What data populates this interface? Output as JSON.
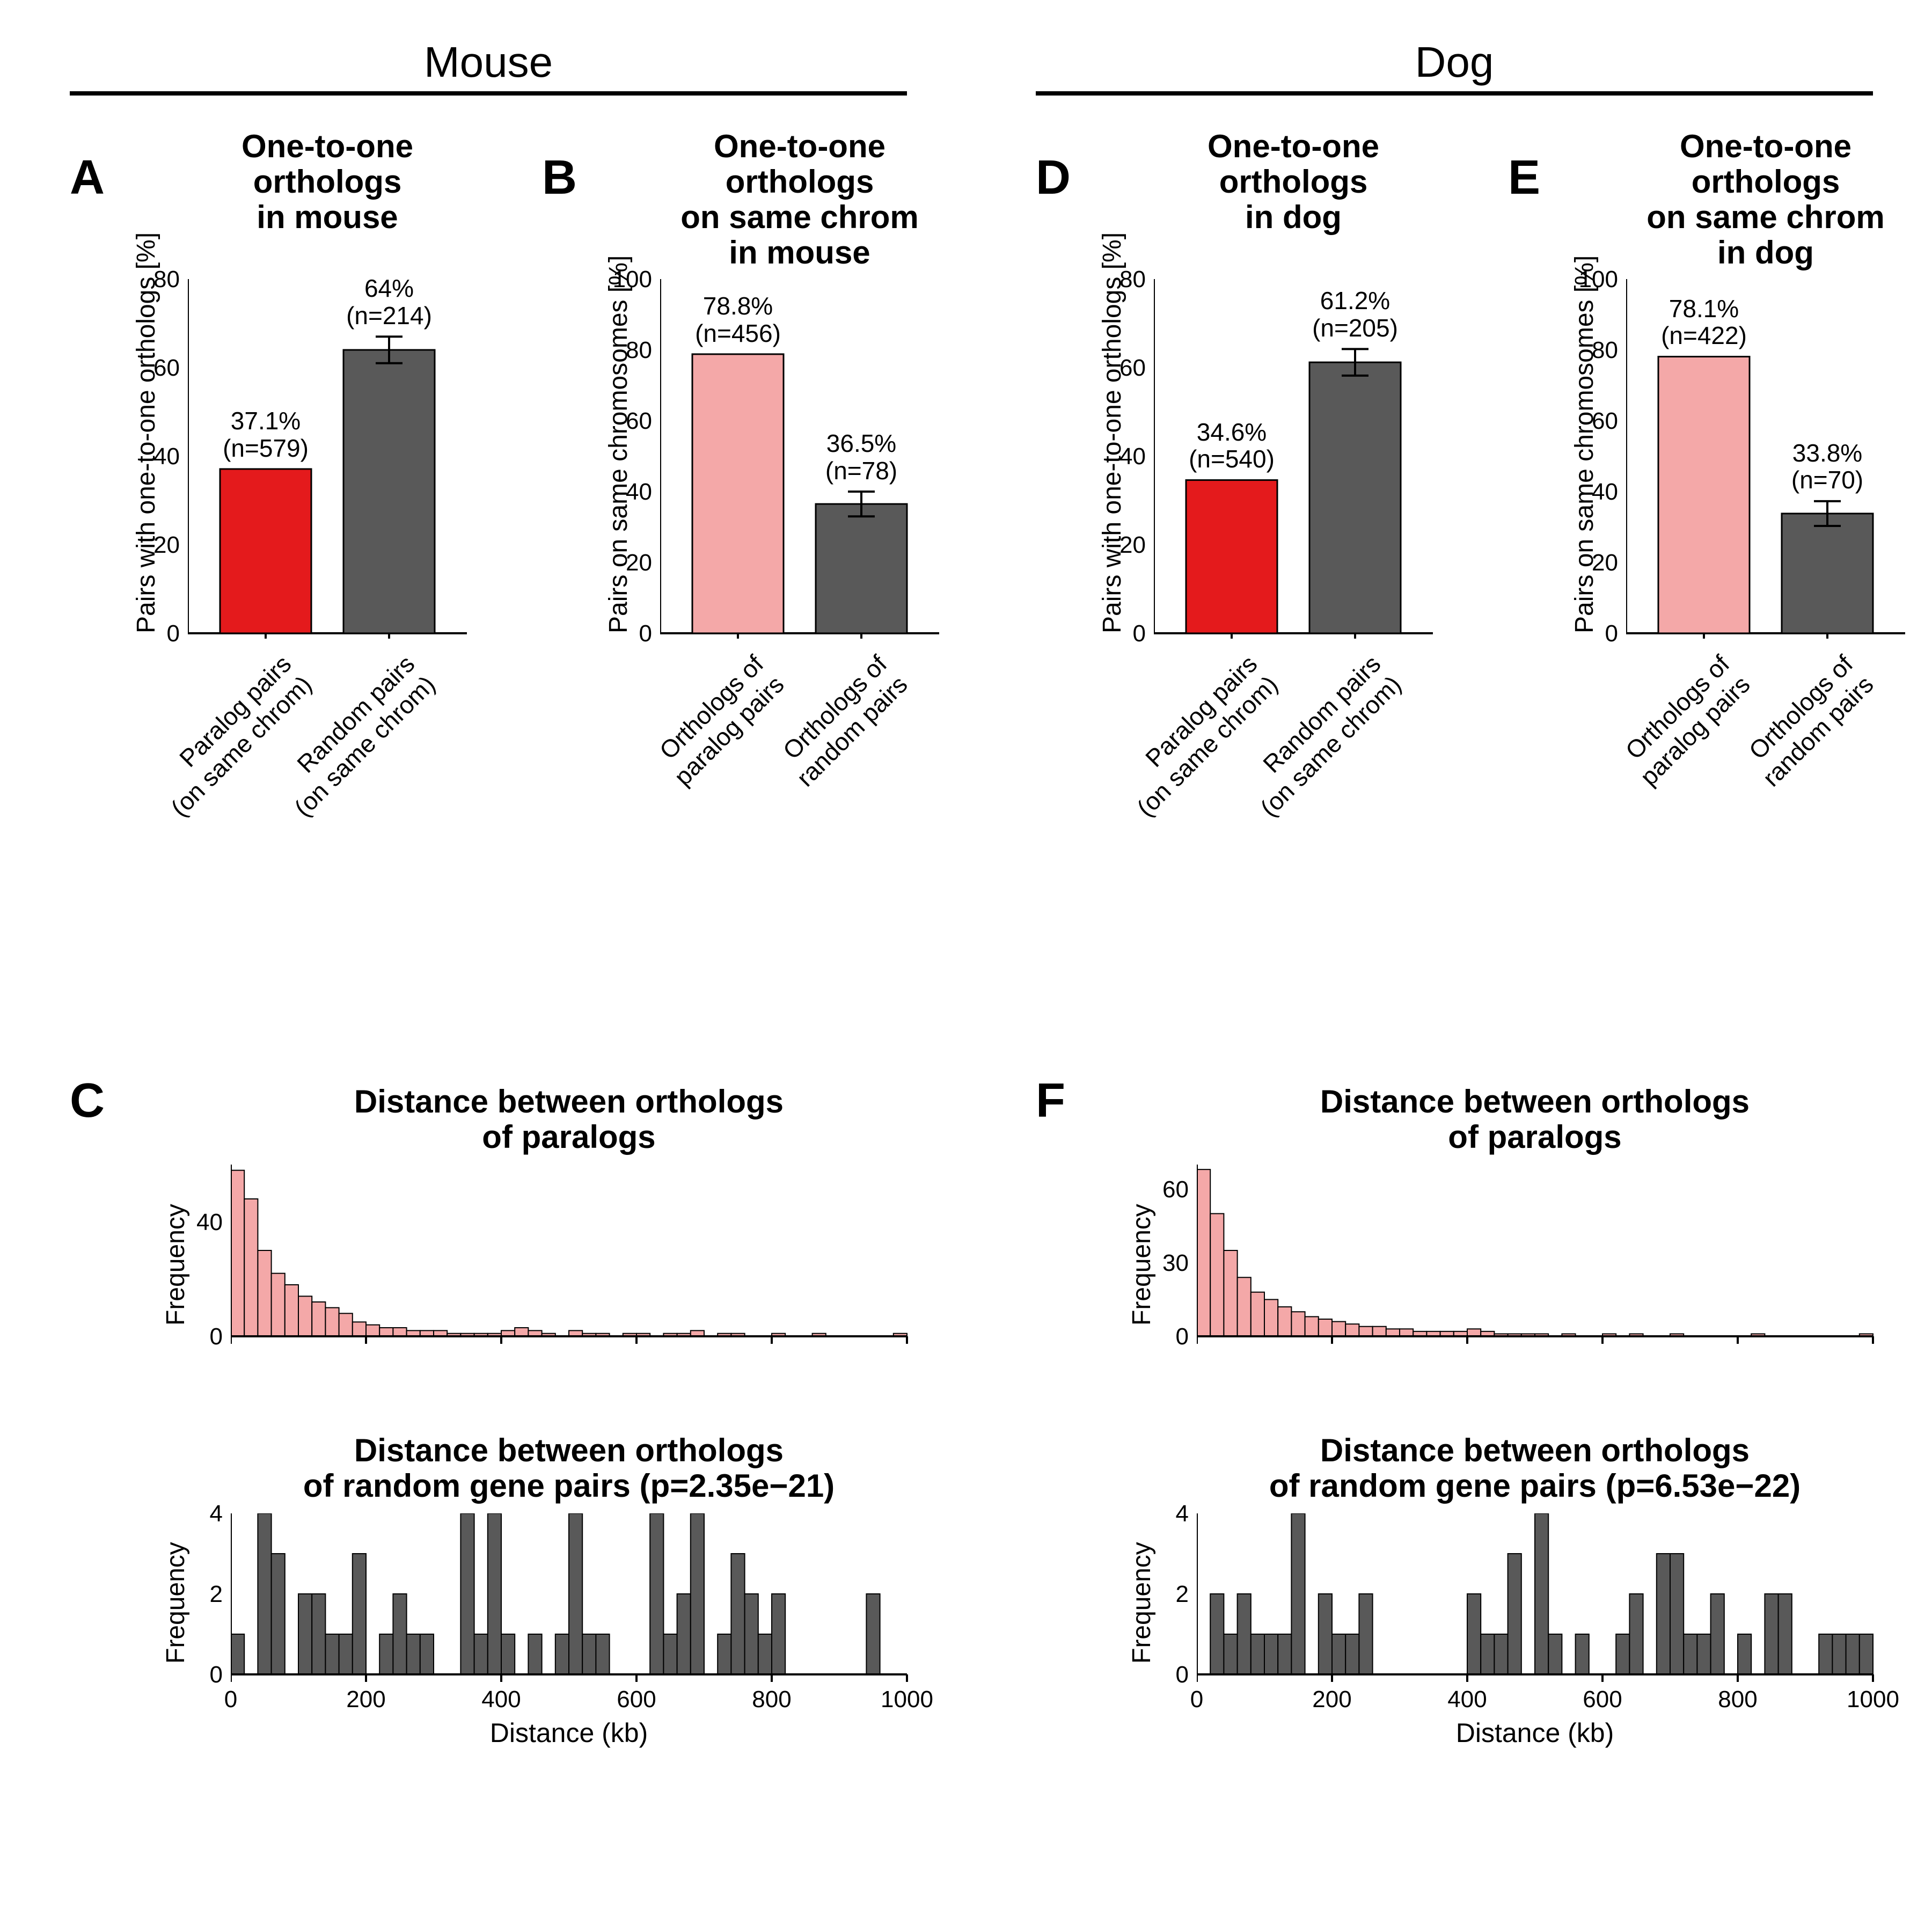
{
  "colors": {
    "red": "#e41a1c",
    "pink": "#f4a8a8",
    "grey": "#595959",
    "axis": "#000000",
    "bg": "#ffffff"
  },
  "headers": {
    "mouse": "Mouse",
    "dog": "Dog"
  },
  "panels": {
    "A": {
      "letter": "A",
      "title": "One-to-one\northologs\nin  mouse",
      "ylab": "Pairs with one-to-one orthologs [%]",
      "ylim": [
        0,
        80
      ],
      "ytick_step": 20,
      "bars": [
        {
          "label": "Paralog pairs\n(on same chrom)",
          "value": 37.1,
          "annot": "37.1%\n(n=579)",
          "color": "#e41a1c",
          "err": 0
        },
        {
          "label": "Random pairs\n(on same chrom)",
          "value": 64,
          "annot": "64%\n(n=214)",
          "color": "#595959",
          "err": 3.0
        }
      ]
    },
    "B": {
      "letter": "B",
      "title": "One-to-one\northologs\non same chrom\nin mouse",
      "ylab": "Pairs on same chromosomes [%]",
      "ylim": [
        0,
        100
      ],
      "ytick_step": 20,
      "bars": [
        {
          "label": "Orthologs of\nparalog pairs",
          "value": 78.8,
          "annot": "78.8%\n(n=456)",
          "color": "#f4a8a8",
          "err": 0
        },
        {
          "label": "Orthologs of\nrandom pairs",
          "value": 36.5,
          "annot": "36.5%\n(n=78)",
          "color": "#595959",
          "err": 3.5
        }
      ]
    },
    "D": {
      "letter": "D",
      "title": "One-to-one\northologs\nin  dog",
      "ylab": "Pairs with one-to-one orthologs [%]",
      "ylim": [
        0,
        80
      ],
      "ytick_step": 20,
      "bars": [
        {
          "label": "Paralog pairs\n(on same chrom)",
          "value": 34.6,
          "annot": "34.6%\n(n=540)",
          "color": "#e41a1c",
          "err": 0
        },
        {
          "label": "Random pairs\n(on same chrom)",
          "value": 61.2,
          "annot": "61.2%\n(n=205)",
          "color": "#595959",
          "err": 3.0
        }
      ]
    },
    "E": {
      "letter": "E",
      "title": "One-to-one\northologs\non same chrom\nin dog",
      "ylab": "Pairs on same chromosomes [%]",
      "ylim": [
        0,
        100
      ],
      "ytick_step": 20,
      "bars": [
        {
          "label": "Orthologs of\nparalog pairs",
          "value": 78.1,
          "annot": "78.1%\n(n=422)",
          "color": "#f4a8a8",
          "err": 0
        },
        {
          "label": "Orthologs of\nrandom pairs",
          "value": 33.8,
          "annot": "33.8%\n(n=70)",
          "color": "#595959",
          "err": 3.5
        }
      ]
    },
    "C": {
      "letter": "C",
      "top_title": "Distance between orthologs\nof paralogs",
      "bot_title": "Distance between orthologs\nof random gene pairs (p=2.35e−21)",
      "xlab": "Distance (kb)",
      "xlim": [
        0,
        1000
      ],
      "xtick_step": 200,
      "top": {
        "color": "#f4a8a8",
        "ylim": [
          0,
          60
        ],
        "yticks": [
          0,
          40
        ],
        "bins": [
          58,
          48,
          30,
          22,
          18,
          14,
          12,
          10,
          8,
          5,
          4,
          3,
          3,
          2,
          2,
          2,
          1,
          1,
          1,
          1,
          2,
          3,
          2,
          1,
          0,
          2,
          1,
          1,
          0,
          1,
          1,
          0,
          1,
          1,
          2,
          0,
          1,
          1,
          0,
          0,
          1,
          0,
          0,
          1,
          0,
          0,
          0,
          0,
          0,
          1
        ]
      },
      "bot": {
        "color": "#595959",
        "ylim": [
          0,
          4
        ],
        "yticks": [
          0,
          2,
          4
        ],
        "bins": [
          1,
          0,
          4,
          3,
          0,
          2,
          2,
          1,
          1,
          3,
          0,
          1,
          2,
          1,
          1,
          0,
          0,
          4,
          1,
          4,
          1,
          0,
          1,
          0,
          1,
          4,
          1,
          1,
          0,
          0,
          0,
          4,
          1,
          2,
          4,
          0,
          1,
          3,
          2,
          1,
          2,
          0,
          0,
          0,
          0,
          0,
          0,
          2,
          0,
          0
        ]
      }
    },
    "F": {
      "letter": "F",
      "top_title": "Distance between orthologs\nof paralogs",
      "bot_title": "Distance between orthologs\nof random gene pairs (p=6.53e−22)",
      "xlab": "Distance (kb)",
      "xlim": [
        0,
        1000
      ],
      "xtick_step": 200,
      "top": {
        "color": "#f4a8a8",
        "ylim": [
          0,
          70
        ],
        "yticks": [
          0,
          30,
          60
        ],
        "bins": [
          68,
          50,
          35,
          24,
          18,
          15,
          12,
          10,
          8,
          7,
          6,
          5,
          4,
          4,
          3,
          3,
          2,
          2,
          2,
          2,
          3,
          2,
          1,
          1,
          1,
          1,
          0,
          1,
          0,
          0,
          1,
          0,
          1,
          0,
          0,
          1,
          0,
          0,
          0,
          0,
          0,
          1,
          0,
          0,
          0,
          0,
          0,
          0,
          0,
          1
        ]
      },
      "bot": {
        "color": "#595959",
        "ylim": [
          0,
          4
        ],
        "yticks": [
          0,
          2,
          4
        ],
        "bins": [
          0,
          2,
          1,
          2,
          1,
          1,
          1,
          4,
          0,
          2,
          1,
          1,
          2,
          0,
          0,
          0,
          0,
          0,
          0,
          0,
          2,
          1,
          1,
          3,
          0,
          4,
          1,
          0,
          1,
          0,
          0,
          1,
          2,
          0,
          3,
          3,
          1,
          1,
          2,
          0,
          1,
          0,
          2,
          2,
          0,
          0,
          1,
          1,
          1,
          1
        ]
      }
    }
  }
}
